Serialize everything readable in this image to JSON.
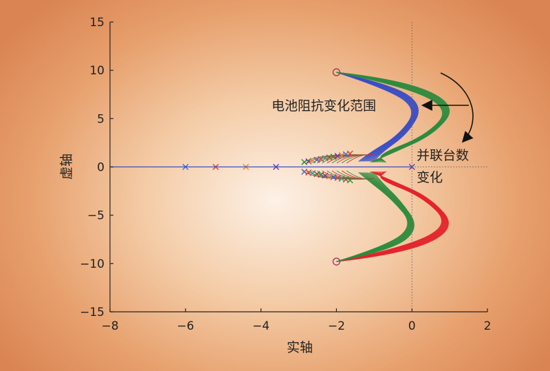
{
  "chart_data": {
    "type": "scatter",
    "title": "",
    "xlabel": "实轴",
    "ylabel": "虚轴",
    "xlim": [
      -8,
      2
    ],
    "ylim": [
      -15,
      15
    ],
    "xticks": [
      -8,
      -6,
      -4,
      -2,
      0,
      2
    ],
    "yticks": [
      -15,
      -10,
      -5,
      0,
      5,
      10,
      15
    ],
    "xtick_labels": [
      "−8",
      "−6",
      "−4",
      "−2",
      "0",
      "2"
    ],
    "ytick_labels": [
      "−15",
      "−10",
      "−5",
      "0",
      "5",
      "10",
      "15"
    ],
    "grid": false,
    "annotations": {
      "impedance": "电池阻抗变化范围",
      "parallel_line1": "并联台数",
      "parallel_line2": "变化"
    },
    "colors": {
      "blue": "#3a4ec4",
      "green": "#2e8b3e",
      "red": "#e4242b",
      "axis_line": "#3a4ec4",
      "zero_marker": "#6a3aa8"
    },
    "zeros": [
      {
        "x": -2.0,
        "y": 9.8
      },
      {
        "x": -2.0,
        "y": -9.8
      }
    ],
    "poles_real_axis": [
      {
        "x": -6.0,
        "y": 0,
        "color": "#3a6bd1"
      },
      {
        "x": -5.2,
        "y": 0,
        "color": "#d9453a"
      },
      {
        "x": -4.4,
        "y": 0,
        "color": "#e08a2e"
      },
      {
        "x": -3.6,
        "y": 0,
        "color": "#6a3aa8"
      },
      {
        "x": 0.0,
        "y": 0,
        "color": "#6a3aa8"
      }
    ],
    "series": [
      {
        "color": "#3a4ec4",
        "points": [
          [
            -2.0,
            9.8
          ],
          [
            -0.5,
            8.5
          ],
          [
            0.3,
            6.3
          ],
          [
            -0.1,
            3.5
          ],
          [
            -0.8,
            1.5
          ],
          [
            -1.0,
            0.6
          ]
        ]
      },
      {
        "color": "#2e8b3e",
        "points": [
          [
            -2.0,
            9.8
          ],
          [
            -0.2,
            9.0
          ],
          [
            1.2,
            6.4
          ],
          [
            0.6,
            3.4
          ],
          [
            -0.6,
            1.3
          ],
          [
            -1.1,
            0.5
          ]
        ]
      },
      {
        "color": "#e4242b",
        "points": [
          [
            -2.0,
            -9.8
          ],
          [
            -0.2,
            -9.0
          ],
          [
            1.2,
            -6.4
          ],
          [
            0.5,
            -3.2
          ],
          [
            -0.6,
            -1.3
          ],
          [
            -1.1,
            -0.5
          ]
        ]
      },
      {
        "color": "#2e8b3e",
        "points": [
          [
            -2.0,
            -9.8
          ],
          [
            -0.5,
            -8.6
          ],
          [
            0.2,
            -6.3
          ],
          [
            -0.3,
            -3.5
          ],
          [
            -0.8,
            -1.6
          ],
          [
            -1.0,
            -0.6
          ]
        ]
      }
    ]
  }
}
